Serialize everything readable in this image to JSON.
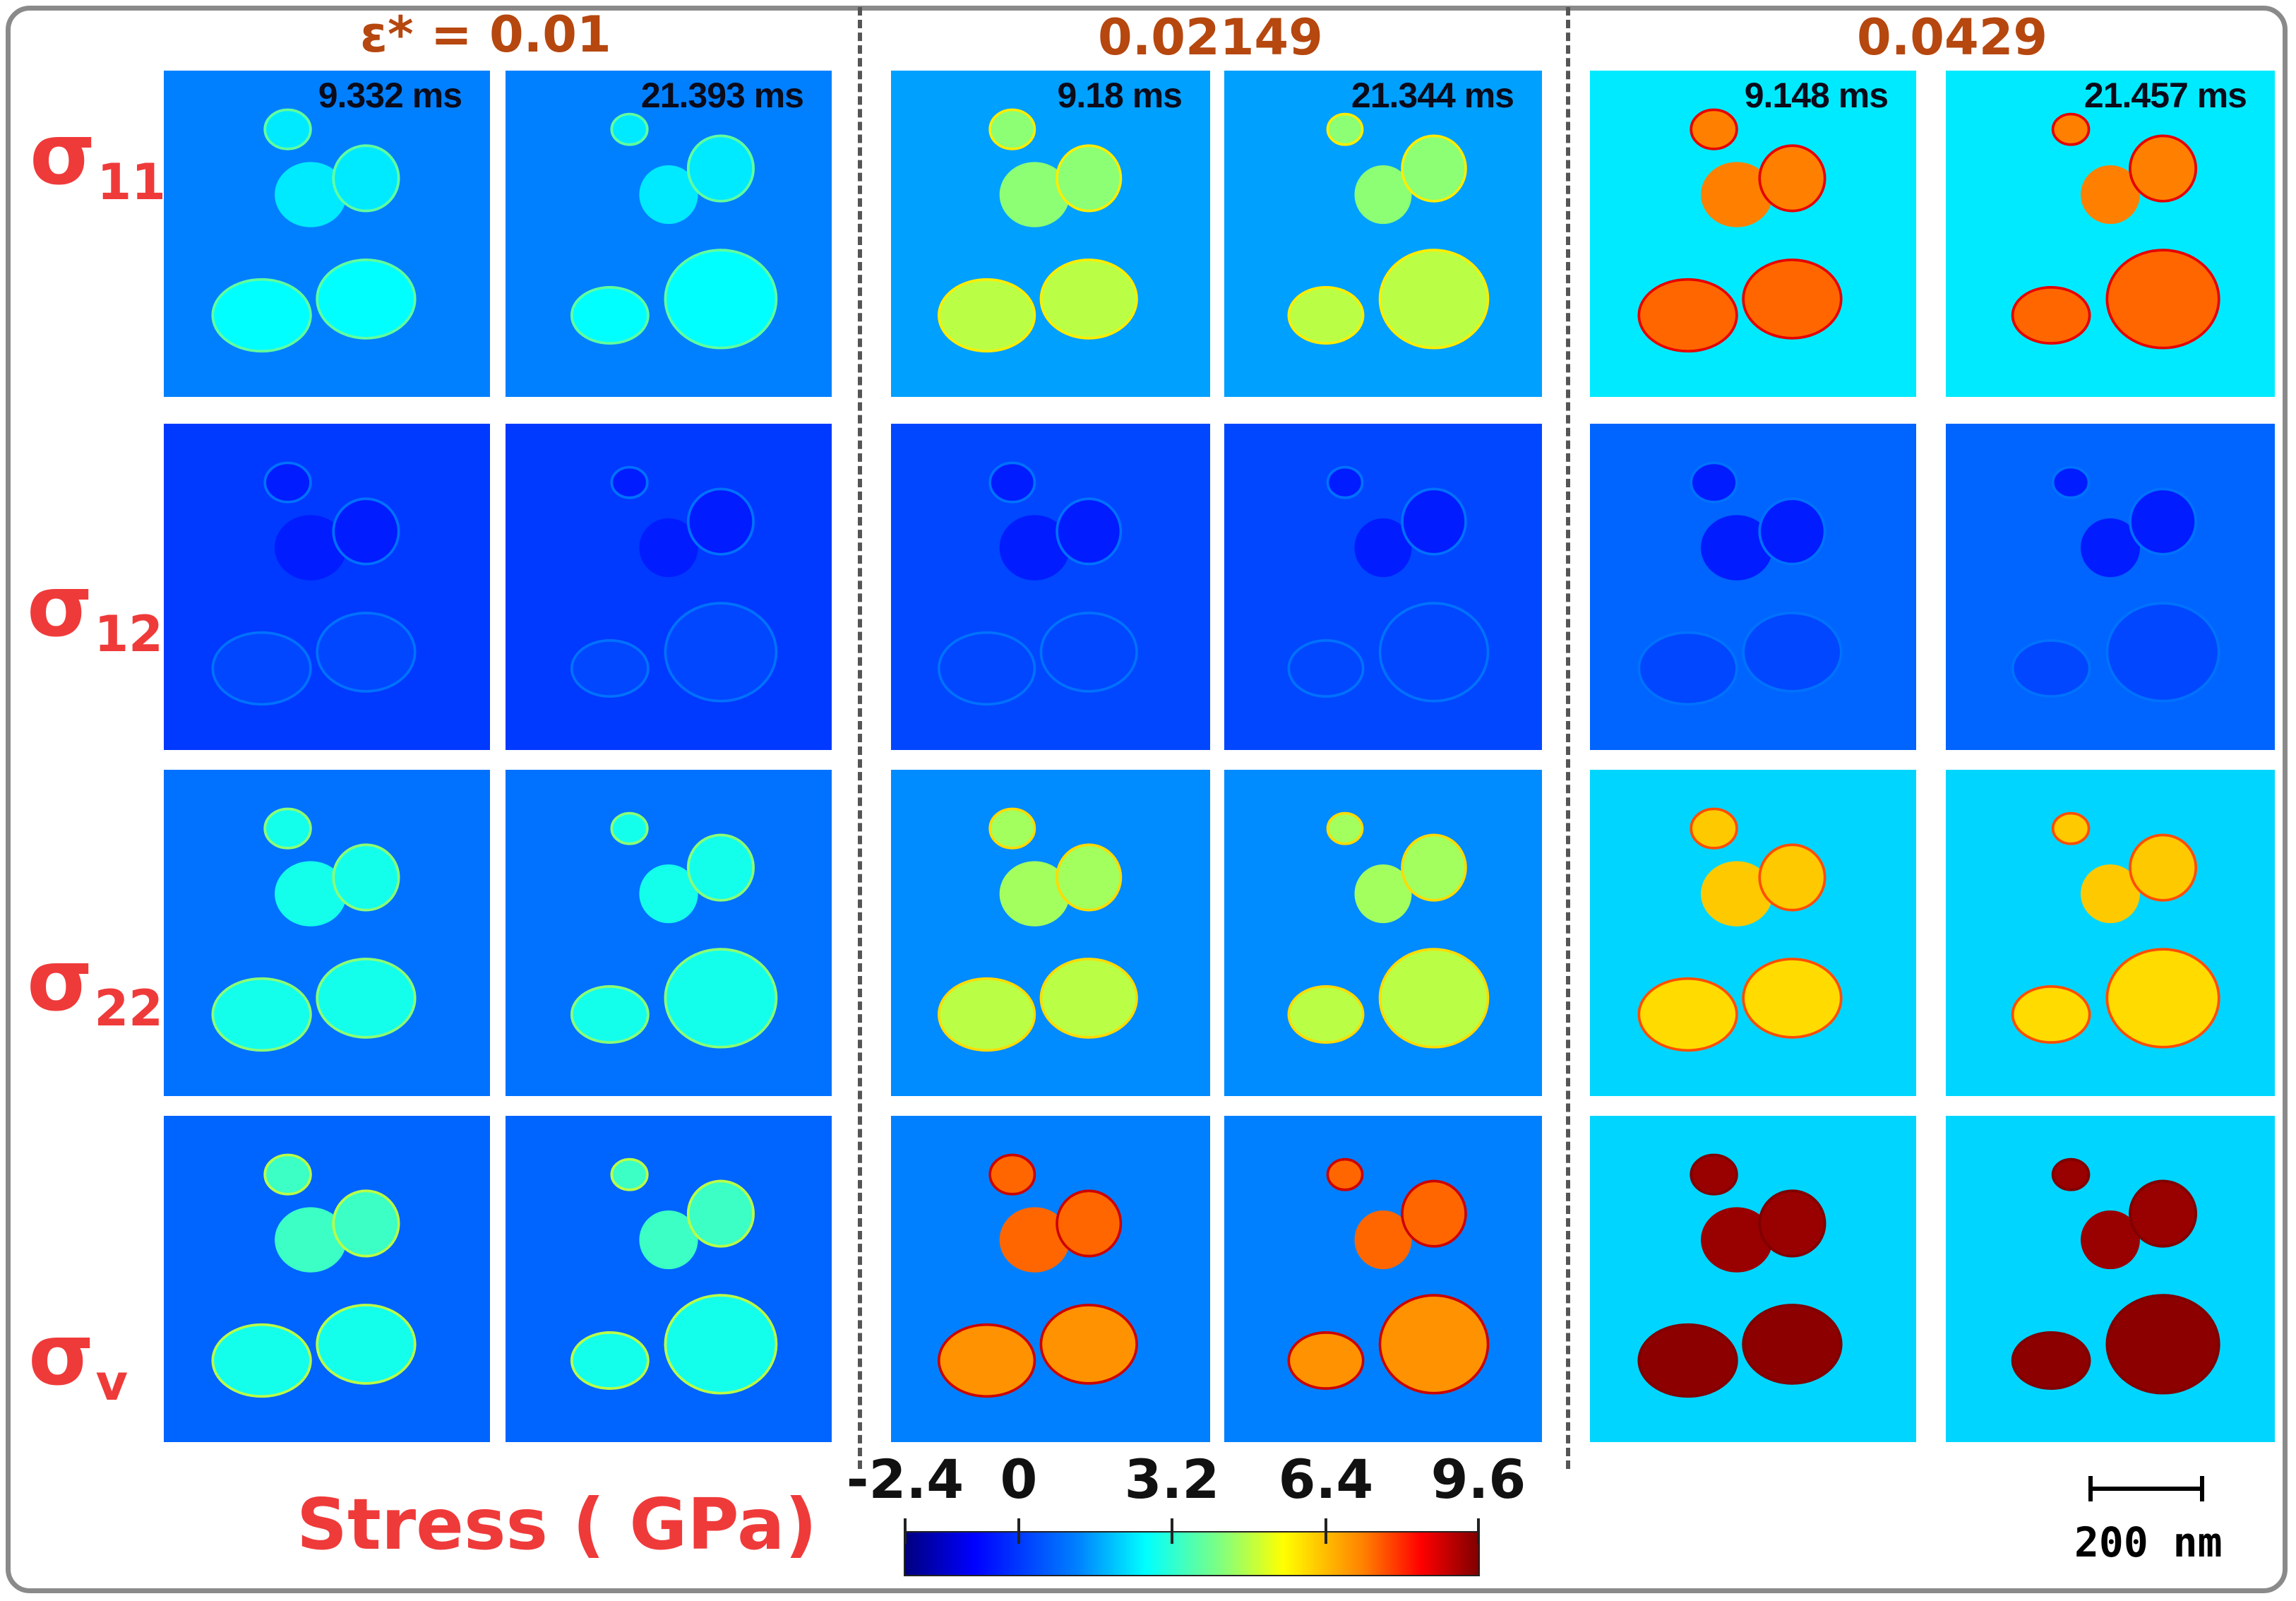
{
  "strain_labels": [
    "ε*  = 0.01",
    "0.02149",
    "0.0429"
  ],
  "row_labels": [
    {
      "symbol": "σ",
      "subscript": "11"
    },
    {
      "symbol": "σ",
      "subscript": "12"
    },
    {
      "symbol": "σ",
      "subscript": "22"
    },
    {
      "symbol": "σ",
      "subscript": "v"
    }
  ],
  "time_labels": [
    "9.332 ms",
    "21.393 ms",
    "9.18 ms",
    "21.344 ms",
    "9.148 ms",
    "21.457  ms"
  ],
  "colorbar": {
    "title": "Stress ( GPa)",
    "ticks": [
      "-2.4",
      "0",
      "3.2",
      "6.4",
      "9.6"
    ],
    "colors": [
      "#00007f",
      "#0000ff",
      "#0080ff",
      "#00ffff",
      "#80ff80",
      "#ffff00",
      "#ff8000",
      "#ff0000",
      "#7f0000"
    ]
  },
  "scale_bar": {
    "label": "200 nm"
  },
  "colors": {
    "label_red": "#ef3a3a",
    "strain_orange": "#b5470f",
    "frame_gray": "#8a8a8a"
  }
}
